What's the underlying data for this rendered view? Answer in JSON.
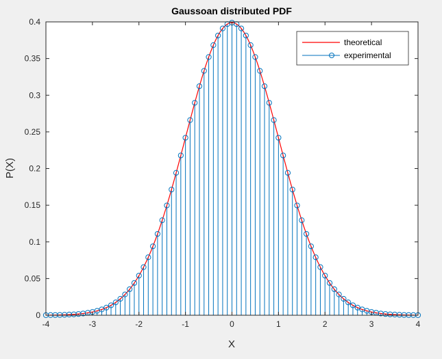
{
  "chart_data": {
    "type": "stem",
    "title": "Gaussoan distributed PDF",
    "xlabel": "X",
    "ylabel": "P(X)",
    "xlim": [
      -4,
      4
    ],
    "ylim": [
      0,
      0.4
    ],
    "xticks": [
      "-4",
      "-3",
      "-2",
      "-1",
      "0",
      "1",
      "2",
      "3",
      "4"
    ],
    "yticks": [
      "0",
      "0.05",
      "0.1",
      "0.15",
      "0.2",
      "0.25",
      "0.3",
      "0.35",
      "0.4"
    ],
    "grid": false,
    "legend_position": "top-right",
    "colors": {
      "theoretical": "#ff0000",
      "experimental": "#0072bd",
      "figure_bg": "#f0f0f0",
      "axes_bg": "#ffffff",
      "axis": "#262626"
    },
    "series": [
      {
        "name": "theoretical",
        "kind": "line",
        "function": "normal_pdf",
        "mean": 0,
        "std": 1,
        "x_range": [
          -4,
          4
        ]
      },
      {
        "name": "experimental",
        "kind": "stem",
        "marker": "circle",
        "x": [
          -4.0,
          -3.9,
          -3.8,
          -3.7,
          -3.6,
          -3.5,
          -3.4,
          -3.3,
          -3.2,
          -3.1,
          -3.0,
          -2.9,
          -2.8,
          -2.7,
          -2.6,
          -2.5,
          -2.4,
          -2.3,
          -2.2,
          -2.1,
          -2.0,
          -1.9,
          -1.8,
          -1.7,
          -1.6,
          -1.5,
          -1.4,
          -1.3,
          -1.2,
          -1.1,
          -1.0,
          -0.9,
          -0.8,
          -0.7,
          -0.6,
          -0.5,
          -0.4,
          -0.3,
          -0.2,
          -0.1,
          0.0,
          0.1,
          0.2,
          0.3,
          0.4,
          0.5,
          0.6,
          0.7,
          0.8,
          0.9,
          1.0,
          1.1,
          1.2,
          1.3,
          1.4,
          1.5,
          1.6,
          1.7,
          1.8,
          1.9,
          2.0,
          2.1,
          2.2,
          2.3,
          2.4,
          2.5,
          2.6,
          2.7,
          2.8,
          2.9,
          3.0,
          3.1,
          3.2,
          3.3,
          3.4,
          3.5,
          3.6,
          3.7,
          3.8,
          3.9,
          4.0
        ],
        "y": [
          0.0001,
          0.0002,
          0.0003,
          0.0004,
          0.0006,
          0.0009,
          0.0012,
          0.0017,
          0.0024,
          0.0033,
          0.0044,
          0.006,
          0.0079,
          0.0104,
          0.0136,
          0.0175,
          0.0224,
          0.0283,
          0.0355,
          0.044,
          0.054,
          0.0656,
          0.079,
          0.094,
          0.1109,
          0.1295,
          0.1497,
          0.1714,
          0.1942,
          0.2179,
          0.242,
          0.2661,
          0.2897,
          0.3123,
          0.3332,
          0.3521,
          0.3683,
          0.3814,
          0.391,
          0.397,
          0.3989,
          0.397,
          0.391,
          0.3814,
          0.3683,
          0.3521,
          0.3332,
          0.3123,
          0.2897,
          0.2661,
          0.242,
          0.2179,
          0.1942,
          0.1714,
          0.1497,
          0.1295,
          0.1109,
          0.094,
          0.079,
          0.0656,
          0.054,
          0.044,
          0.0355,
          0.0283,
          0.0224,
          0.0175,
          0.0136,
          0.0104,
          0.0079,
          0.006,
          0.0044,
          0.0033,
          0.0024,
          0.0017,
          0.0012,
          0.0009,
          0.0006,
          0.0004,
          0.0003,
          0.0002,
          0.0001
        ]
      }
    ]
  }
}
